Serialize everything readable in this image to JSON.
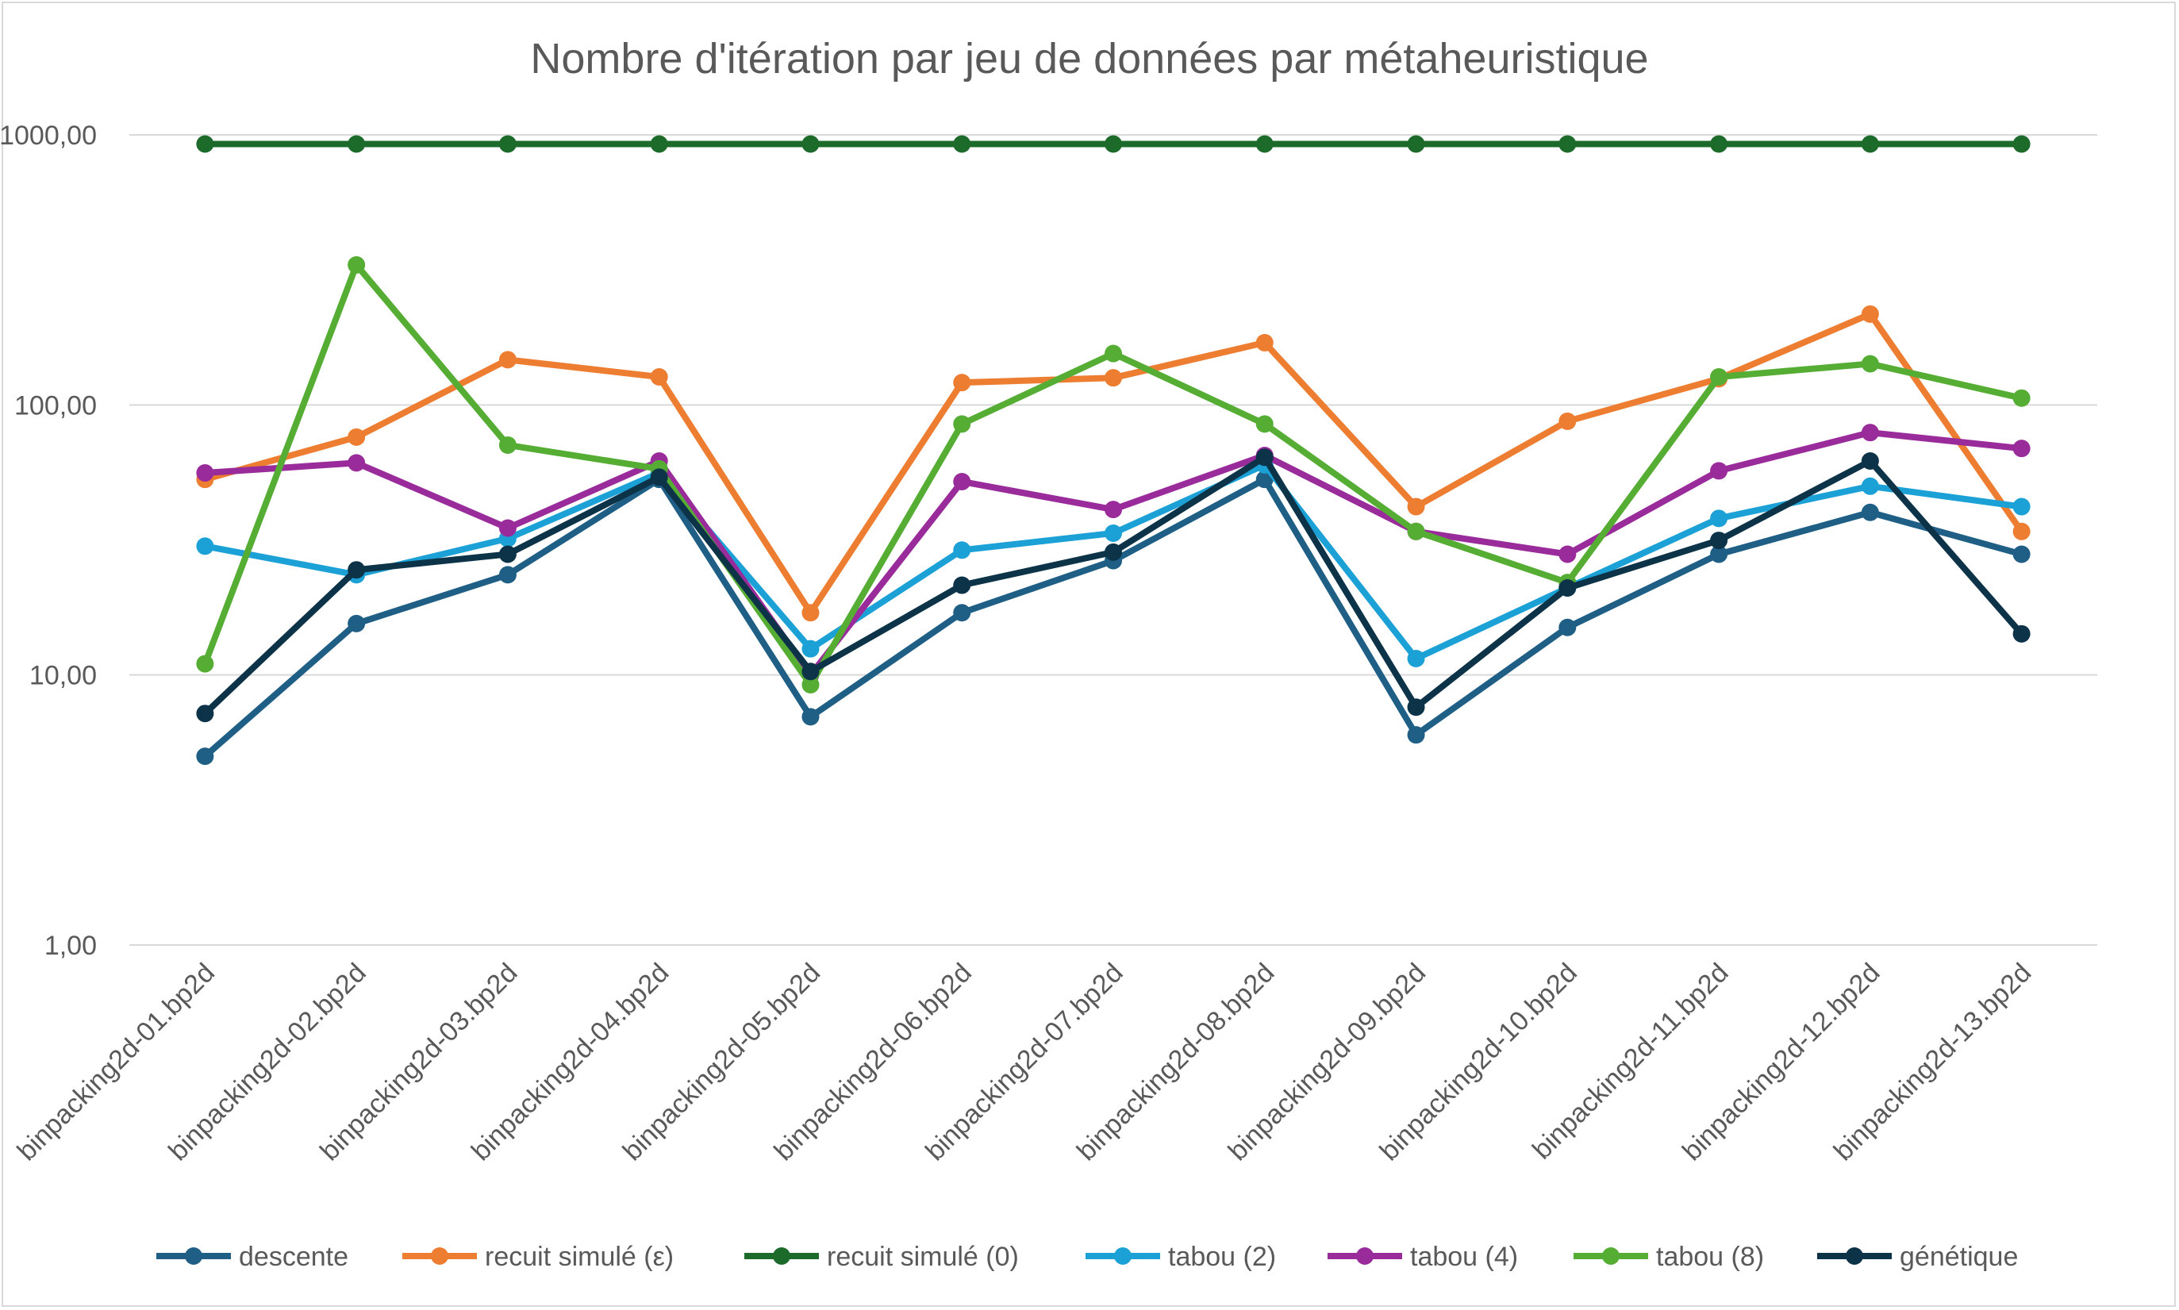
{
  "chart_data": {
    "type": "line",
    "title": "Nombre d'itération par jeu de données par métaheuristique",
    "xlabel": "",
    "ylabel": "",
    "y_scale": "log",
    "ylim": [
      1,
      1000
    ],
    "y_ticks": [
      {
        "value": 1,
        "label": "1,00"
      },
      {
        "value": 10,
        "label": "10,00"
      },
      {
        "value": 100,
        "label": "100,00"
      },
      {
        "value": 1000,
        "label": "1000,00"
      }
    ],
    "grid": true,
    "legend_position": "bottom",
    "categories": [
      "binpacking2d-01.bp2d",
      "binpacking2d-02.bp2d",
      "binpacking2d-03.bp2d",
      "binpacking2d-04.bp2d",
      "binpacking2d-05.bp2d",
      "binpacking2d-06.bp2d",
      "binpacking2d-07.bp2d",
      "binpacking2d-08.bp2d",
      "binpacking2d-09.bp2d",
      "binpacking2d-10.bp2d",
      "binpacking2d-11.bp2d",
      "binpacking2d-12.bp2d",
      "binpacking2d-13.bp2d"
    ],
    "series": [
      {
        "name": "descente",
        "color": "#1f5f86",
        "values": [
          5,
          15.5,
          23.5,
          53,
          7,
          17,
          26.5,
          53,
          6,
          15,
          28,
          40,
          28
        ]
      },
      {
        "name": "recuit simulé (ε)",
        "color": "#ed7d31",
        "values": [
          53,
          76,
          147,
          127,
          17,
          121,
          126,
          170,
          42,
          87,
          125,
          217,
          34
        ]
      },
      {
        "name": "recuit simulé (0)",
        "color": "#1d6b2a",
        "values": [
          925,
          925,
          925,
          925,
          925,
          925,
          925,
          925,
          925,
          925,
          925,
          925,
          925
        ]
      },
      {
        "name": "tabou (2)",
        "color": "#1ba1d6",
        "values": [
          30,
          23.5,
          32,
          56,
          12.5,
          29,
          33.5,
          60,
          11.5,
          21,
          38,
          50,
          42
        ]
      },
      {
        "name": "tabou (4)",
        "color": "#992b9a",
        "values": [
          56,
          61,
          35,
          62,
          10,
          52,
          41,
          65,
          34,
          28,
          57,
          79,
          69
        ]
      },
      {
        "name": "tabou (8)",
        "color": "#55ad34",
        "values": [
          11,
          330,
          71,
          58,
          9.2,
          85,
          155,
          85,
          34,
          22,
          127,
          142,
          106
        ]
      },
      {
        "name": "génétique",
        "color": "#0d3349",
        "values": [
          7.2,
          24.5,
          28,
          54,
          10.3,
          21.5,
          28.5,
          64,
          7.6,
          21,
          31.5,
          62,
          14.2
        ]
      }
    ]
  }
}
